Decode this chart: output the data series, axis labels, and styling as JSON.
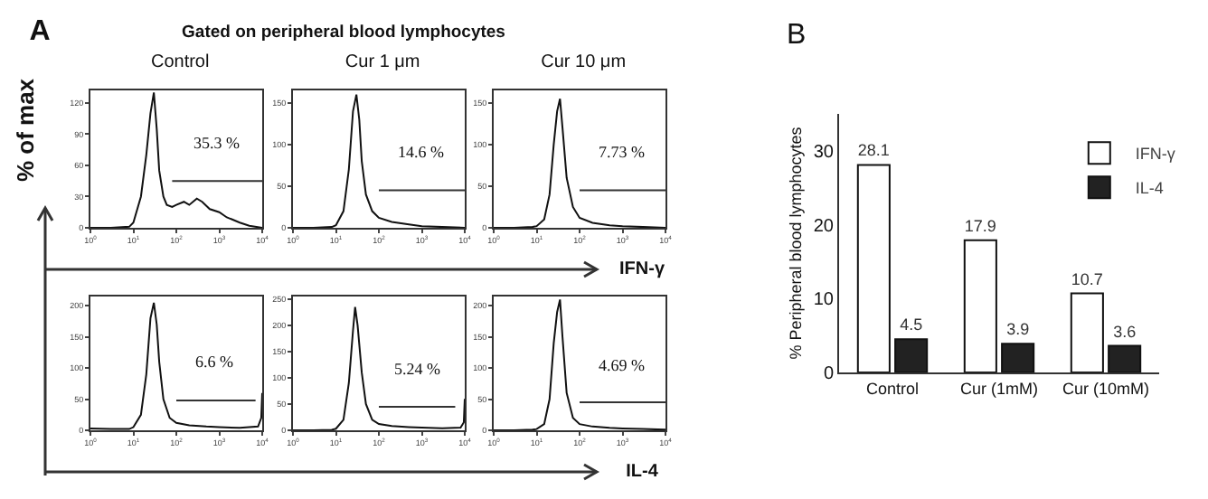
{
  "chart_data": [
    {
      "type": "line",
      "title": "Control",
      "ylabel": "% of max",
      "annotations": [
        "A",
        "Gated on peripheral blood lymphocytes",
        "35.3 %"
      ],
      "log": "x",
      "xlim": [
        1,
        10000
      ],
      "xticks": [
        {
          "value": 1,
          "label": "10$^{0}$"
        },
        {
          "value": 10,
          "label": "10$^{1}$"
        },
        {
          "value": 100,
          "label": "10$^{2}$"
        },
        {
          "value": 1000,
          "label": "10$^{3}$"
        },
        {
          "value": 10000,
          "label": "10$^{4}$"
        }
      ],
      "ylim": [
        0,
        132
      ],
      "yticks": [
        0,
        30,
        60,
        90,
        120
      ],
      "grid": false,
      "legend": false,
      "series": [
        {
          "color": "#111111",
          "x": [
            1,
            3,
            8,
            10,
            15,
            20,
            25,
            30,
            35,
            40,
            50,
            60,
            80,
            100,
            150,
            200,
            300,
            400,
            600,
            1000,
            1500,
            2000,
            3000,
            5000,
            10000
          ],
          "values": [
            0,
            0,
            1,
            5,
            30,
            70,
            110,
            130,
            95,
            55,
            30,
            22,
            20,
            22,
            25,
            22,
            28,
            25,
            18,
            15,
            10,
            8,
            5,
            2,
            0
          ]
        },
        {
          "color": "#333333",
          "x": [
            80,
            10000
          ],
          "values": [
            45,
            45
          ]
        }
      ]
    },
    {
      "type": "line",
      "title": "Cur 1 μm",
      "annotations": [
        "14.6 %"
      ],
      "log": "x",
      "xlim": [
        1,
        10000
      ],
      "xticks": [
        {
          "value": 1,
          "label": "10$^{0}$"
        },
        {
          "value": 10,
          "label": "10$^{1}$"
        },
        {
          "value": 100,
          "label": "10$^{2}$"
        },
        {
          "value": 1000,
          "label": "10$^{3}$"
        },
        {
          "value": 10000,
          "label": "10$^{4}$"
        }
      ],
      "ylim": [
        0,
        165
      ],
      "yticks": [
        0,
        50,
        100,
        150
      ],
      "grid": false,
      "legend": false,
      "series": [
        {
          "color": "#111111",
          "x": [
            1,
            3,
            8,
            10,
            15,
            20,
            25,
            30,
            35,
            40,
            50,
            70,
            100,
            200,
            500,
            1000,
            3000,
            10000
          ],
          "values": [
            0,
            0,
            1,
            3,
            20,
            70,
            140,
            160,
            130,
            80,
            40,
            20,
            12,
            7,
            4,
            2,
            1,
            0
          ]
        },
        {
          "color": "#333333",
          "x": [
            100,
            10000
          ],
          "values": [
            45,
            45
          ]
        }
      ]
    },
    {
      "type": "line",
      "title": "Cur 10 μm",
      "xlabel": "IFN-γ",
      "annotations": [
        "7.73 %"
      ],
      "log": "x",
      "xlim": [
        1,
        10000
      ],
      "xticks": [
        {
          "value": 1,
          "label": "10$^{0}$"
        },
        {
          "value": 10,
          "label": "10$^{1}$"
        },
        {
          "value": 100,
          "label": "10$^{2}$"
        },
        {
          "value": 1000,
          "label": "10$^{3}$"
        },
        {
          "value": 10000,
          "label": "10$^{4}$"
        }
      ],
      "ylim": [
        0,
        165
      ],
      "yticks": [
        0,
        50,
        100,
        150
      ],
      "grid": false,
      "legend": false,
      "series": [
        {
          "color": "#111111",
          "x": [
            1,
            3,
            8,
            10,
            15,
            20,
            25,
            30,
            35,
            40,
            50,
            70,
            100,
            200,
            500,
            1000,
            3000,
            10000
          ],
          "values": [
            0,
            0,
            1,
            2,
            10,
            40,
            100,
            140,
            155,
            120,
            60,
            25,
            12,
            6,
            3,
            2,
            1,
            0
          ]
        },
        {
          "color": "#333333",
          "x": [
            100,
            10000
          ],
          "values": [
            45,
            45
          ]
        }
      ]
    },
    {
      "type": "line",
      "annotations": [
        "6.6 %"
      ],
      "log": "x",
      "xlim": [
        1,
        10000
      ],
      "xticks": [
        {
          "value": 1,
          "label": "10$^{0}$"
        },
        {
          "value": 10,
          "label": "10$^{1}$"
        },
        {
          "value": 100,
          "label": "10$^{2}$"
        },
        {
          "value": 1000,
          "label": "10$^{3}$"
        },
        {
          "value": 10000,
          "label": "10$^{4}$"
        }
      ],
      "ylim": [
        0,
        215
      ],
      "yticks": [
        0,
        50,
        100,
        150,
        200
      ],
      "grid": false,
      "legend": false,
      "series": [
        {
          "color": "#111111",
          "x": [
            1,
            3,
            8,
            10,
            15,
            20,
            25,
            30,
            35,
            40,
            50,
            70,
            100,
            200,
            500,
            1000,
            3000,
            8000,
            9500,
            10000
          ],
          "values": [
            3,
            2,
            2,
            5,
            25,
            90,
            180,
            205,
            170,
            110,
            50,
            20,
            12,
            8,
            6,
            5,
            4,
            6,
            20,
            60
          ]
        },
        {
          "color": "#333333",
          "x": [
            100,
            7000
          ],
          "values": [
            48,
            48
          ]
        }
      ]
    },
    {
      "type": "line",
      "annotations": [
        "5.24 %"
      ],
      "log": "x",
      "xlim": [
        1,
        10000
      ],
      "xticks": [
        {
          "value": 1,
          "label": "10$^{0}$"
        },
        {
          "value": 10,
          "label": "10$^{1}$"
        },
        {
          "value": 100,
          "label": "10$^{2}$"
        },
        {
          "value": 1000,
          "label": "10$^{3}$"
        },
        {
          "value": 10000,
          "label": "10$^{4}$"
        }
      ],
      "ylim": [
        0,
        255
      ],
      "yticks": [
        0,
        50,
        100,
        150,
        200,
        250
      ],
      "grid": false,
      "legend": false,
      "series": [
        {
          "color": "#111111",
          "x": [
            1,
            3,
            8,
            10,
            15,
            20,
            25,
            28,
            32,
            40,
            50,
            70,
            100,
            200,
            500,
            1000,
            3000,
            8000,
            9500,
            10000
          ],
          "values": [
            0,
            0,
            1,
            3,
            20,
            90,
            190,
            235,
            200,
            110,
            50,
            20,
            12,
            8,
            6,
            5,
            4,
            5,
            15,
            60
          ]
        },
        {
          "color": "#333333",
          "x": [
            100,
            6000
          ],
          "values": [
            45,
            45
          ]
        }
      ]
    },
    {
      "type": "line",
      "xlabel": "IL-4",
      "annotations": [
        "4.69 %"
      ],
      "log": "x",
      "xlim": [
        1,
        10000
      ],
      "xticks": [
        {
          "value": 1,
          "label": "10$^{0}$"
        },
        {
          "value": 10,
          "label": "10$^{1}$"
        },
        {
          "value": 100,
          "label": "10$^{2}$"
        },
        {
          "value": 1000,
          "label": "10$^{3}$"
        },
        {
          "value": 10000,
          "label": "10$^{4}$"
        }
      ],
      "ylim": [
        0,
        215
      ],
      "yticks": [
        0,
        50,
        100,
        150,
        200
      ],
      "grid": false,
      "legend": false,
      "series": [
        {
          "color": "#111111",
          "x": [
            1,
            3,
            8,
            10,
            15,
            20,
            25,
            30,
            35,
            40,
            50,
            70,
            100,
            200,
            500,
            1000,
            3000,
            10000
          ],
          "values": [
            0,
            0,
            1,
            2,
            10,
            50,
            140,
            190,
            210,
            150,
            60,
            20,
            10,
            6,
            4,
            3,
            2,
            1
          ]
        },
        {
          "color": "#333333",
          "x": [
            100,
            10000
          ],
          "values": [
            45,
            45
          ]
        }
      ]
    },
    {
      "type": "bar",
      "ylabel": "% Peripheral blood lymphocytes",
      "annotations": [
        "B"
      ],
      "categories": [
        "Control",
        "Cur (1mM)",
        "Cur (10mM)"
      ],
      "ylim": [
        0,
        35
      ],
      "yticks": [
        0,
        10,
        20,
        30
      ],
      "grid": false,
      "legend": "top right",
      "data_labels": true,
      "series": [
        {
          "name": "IFN-γ",
          "color": "#ffffff",
          "values": [
            28.1,
            17.9,
            10.7
          ]
        },
        {
          "name": "IL-4",
          "color": "#222222",
          "values": [
            4.5,
            3.9,
            3.6
          ]
        }
      ]
    }
  ]
}
